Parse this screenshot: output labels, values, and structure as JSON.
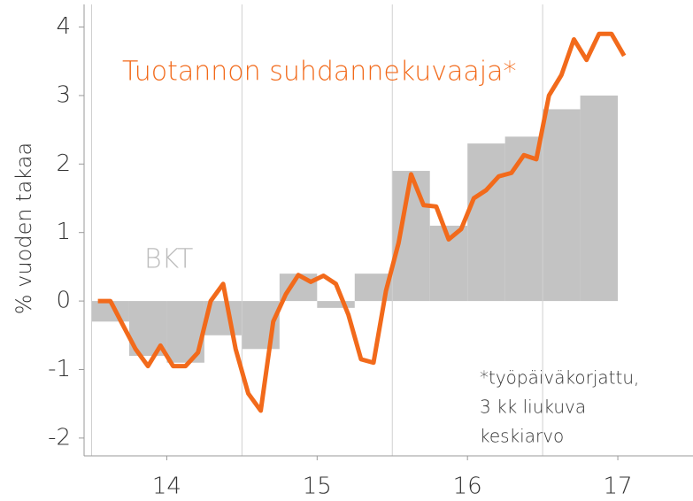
{
  "chart_data": {
    "type": "line",
    "y_label": "% vuoden takaa",
    "annotations": [
      "Tuotannon suhdannekuvaaja*",
      "BKT",
      "*työpäiväkorjattu,",
      "3 kk liukuva",
      "keskiarvo"
    ],
    "xlim": [
      13.95,
      18.0
    ],
    "ylim": [
      -2.26,
      4.33
    ],
    "yticks": [
      -2,
      -1,
      0,
      1,
      2,
      3,
      4
    ],
    "xticks": [
      {
        "value": 14.5,
        "label": "14"
      },
      {
        "value": 15.5,
        "label": "15"
      },
      {
        "value": 16.5,
        "label": "16"
      },
      {
        "value": 17.5,
        "label": "17"
      }
    ],
    "xgrid": [
      14,
      15,
      16,
      17
    ],
    "bars": {
      "name": "BKT",
      "color": "#c3c3c3",
      "bins": [
        14,
        14.25,
        14.5,
        14.75,
        15,
        15.25,
        15.5,
        15.75,
        16,
        16.25,
        16.5,
        16.75,
        17,
        17.25,
        17.5
      ],
      "values": [
        -0.3,
        -0.8,
        -0.9,
        -0.5,
        -0.7,
        0.4,
        -0.1,
        0.4,
        1.9,
        1.1,
        2.3,
        2.4,
        2.8,
        3.0
      ]
    },
    "series": [
      {
        "name": "Tuotannon suhdannekuvaaja*",
        "color": "#f26a1b",
        "x": [
          14.042,
          14.125,
          14.208,
          14.292,
          14.375,
          14.458,
          14.542,
          14.625,
          14.708,
          14.792,
          14.875,
          14.958,
          15.042,
          15.125,
          15.208,
          15.292,
          15.375,
          15.458,
          15.542,
          15.625,
          15.708,
          15.792,
          15.875,
          15.958,
          16.042,
          16.125,
          16.208,
          16.292,
          16.375,
          16.458,
          16.542,
          16.625,
          16.708,
          16.792,
          16.875,
          16.958,
          17.042,
          17.125,
          17.208,
          17.292,
          17.375,
          17.458,
          17.542
        ],
        "values": [
          0.0,
          0.0,
          -0.35,
          -0.7,
          -0.95,
          -0.65,
          -0.95,
          -0.95,
          -0.75,
          0.0,
          0.25,
          -0.7,
          -1.35,
          -1.6,
          -0.3,
          0.1,
          0.38,
          0.28,
          0.37,
          0.25,
          -0.2,
          -0.85,
          -0.9,
          0.15,
          0.85,
          1.85,
          1.4,
          1.38,
          0.9,
          1.05,
          1.5,
          1.62,
          1.82,
          1.87,
          2.13,
          2.07,
          3.0,
          3.3,
          3.82,
          3.52,
          3.9,
          3.9,
          3.58
        ]
      }
    ]
  }
}
